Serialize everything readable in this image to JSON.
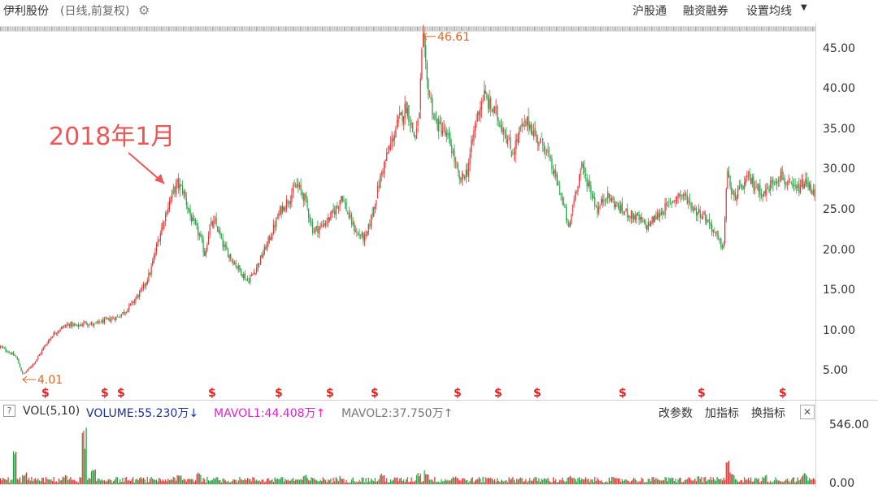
{
  "header": {
    "stock_name": "伊利股份",
    "period_info": "(日线,前复权)",
    "settings_icon": "gear-icon",
    "buttons": [
      "沪股通",
      "融资融券",
      "设置均线"
    ]
  },
  "volume_panel": {
    "help_label": "?",
    "indicator": "VOL(5,10)",
    "volume": "VOLUME:55.230万",
    "volume_arrow": "↓",
    "mavol1": "MAVOL1:44.408万",
    "mavol1_arrow": "↑",
    "mavol2": "MAVOL2:37.750万",
    "mavol2_arrow": "↑",
    "buttons": [
      "改参数",
      "加指标",
      "换指标"
    ],
    "close_label": "✕"
  },
  "colors": {
    "up": "#e03030",
    "down": "#1e9e3c",
    "annotation": "#ee5555",
    "label_orange": "#e0661f",
    "volume_label": "#1a2fa0",
    "mavol1": "#e020d0"
  },
  "chart_data": [
    {
      "type": "candlestick",
      "title": "",
      "yticks": [
        "45.00",
        "40.00",
        "35.00",
        "30.00",
        "25.00",
        "20.00",
        "15.00",
        "10.00",
        "5.00"
      ],
      "ylim": [
        1.5,
        48.3
      ],
      "grid": false,
      "series": [
        {
          "x": [
            0,
            10,
            20,
            28,
            35,
            45,
            55,
            65,
            75,
            85,
            95,
            105,
            115,
            125,
            135,
            145,
            155,
            165,
            175,
            185,
            195,
            205,
            212,
            218,
            225,
            235,
            245,
            252,
            258,
            265,
            275,
            285,
            295,
            305,
            315,
            325,
            335,
            345,
            355,
            365,
            375,
            385,
            395,
            405,
            415,
            420,
            430,
            440,
            450,
            460,
            470,
            480,
            490,
            500,
            510,
            515,
            520,
            525,
            535,
            545,
            555,
            565,
            575,
            585,
            595,
            602,
            610,
            620,
            630,
            640,
            650,
            660,
            670,
            680,
            690,
            700,
            705,
            715,
            725,
            735,
            745,
            755,
            765,
            775,
            785,
            795,
            805,
            815,
            825,
            835,
            845,
            855,
            865,
            875,
            885,
            890,
            895,
            900,
            910,
            920,
            930,
            940,
            950,
            960,
            970,
            980,
            990,
            1000
          ],
          "values": [
            8.1,
            7.5,
            6.8,
            4.6,
            5.3,
            6.5,
            8.2,
            9.6,
            10.4,
            10.9,
            10.6,
            11.1,
            10.8,
            11.2,
            11.5,
            11.8,
            12.6,
            13.8,
            15.2,
            17.4,
            21.5,
            25.0,
            27.1,
            28.3,
            27.5,
            24.0,
            22.0,
            19.5,
            23.0,
            23.5,
            20.5,
            19.0,
            17.6,
            16.2,
            17.8,
            20.0,
            22.4,
            25.0,
            26.4,
            28.2,
            26.5,
            22.5,
            23.0,
            24.0,
            25.5,
            27.0,
            24.0,
            22.0,
            21.5,
            25.5,
            30.0,
            33.0,
            36.0,
            38.0,
            34.0,
            36.0,
            46.6,
            41.0,
            36.0,
            35.0,
            33.0,
            28.5,
            30.0,
            36.0,
            39.5,
            38.0,
            37.0,
            35.0,
            32.0,
            35.0,
            36.0,
            34.0,
            33.0,
            30.0,
            27.0,
            22.5,
            26.0,
            30.5,
            28.0,
            25.0,
            27.0,
            26.0,
            25.0,
            24.5,
            24.0,
            23.0,
            24.0,
            25.0,
            26.0,
            27.0,
            26.5,
            25.0,
            24.5,
            23.0,
            21.0,
            20.5,
            30.5,
            26.5,
            27.5,
            29.0,
            28.0,
            27.0,
            28.5,
            29.5,
            28.0,
            27.5,
            28.5,
            27.5
          ]
        }
      ],
      "annotations": [
        {
          "text": "2018年1月",
          "arrow_to_x": 205
        },
        {
          "text": "46.61",
          "x": 520,
          "value": 46.61
        },
        {
          "text": "4.01",
          "x": 28,
          "value": 4.01
        }
      ],
      "dividend_markers": {
        "symbol": "$",
        "x": [
          55,
          128,
          148,
          260,
          342,
          405,
          460,
          562,
          612,
          660,
          765,
          862,
          962
        ]
      }
    },
    {
      "type": "bar",
      "title": "",
      "series_name": "VOL",
      "yticks": [
        "546.00",
        "0.00"
      ],
      "ylim": [
        0,
        546
      ],
      "grid": false,
      "x": [
        0,
        18,
        30,
        45,
        60,
        80,
        90,
        104,
        115,
        135,
        160,
        190,
        210,
        220,
        245,
        262,
        300,
        340,
        375,
        420,
        470,
        515,
        525,
        560,
        600,
        640,
        700,
        760,
        810,
        860,
        895,
        900,
        940,
        990,
        1000
      ],
      "values": [
        60,
        330,
        120,
        60,
        55,
        90,
        55,
        546,
        140,
        60,
        50,
        55,
        60,
        90,
        130,
        60,
        60,
        70,
        90,
        80,
        100,
        120,
        140,
        90,
        80,
        70,
        80,
        60,
        60,
        80,
        230,
        140,
        90,
        120,
        60
      ]
    }
  ]
}
